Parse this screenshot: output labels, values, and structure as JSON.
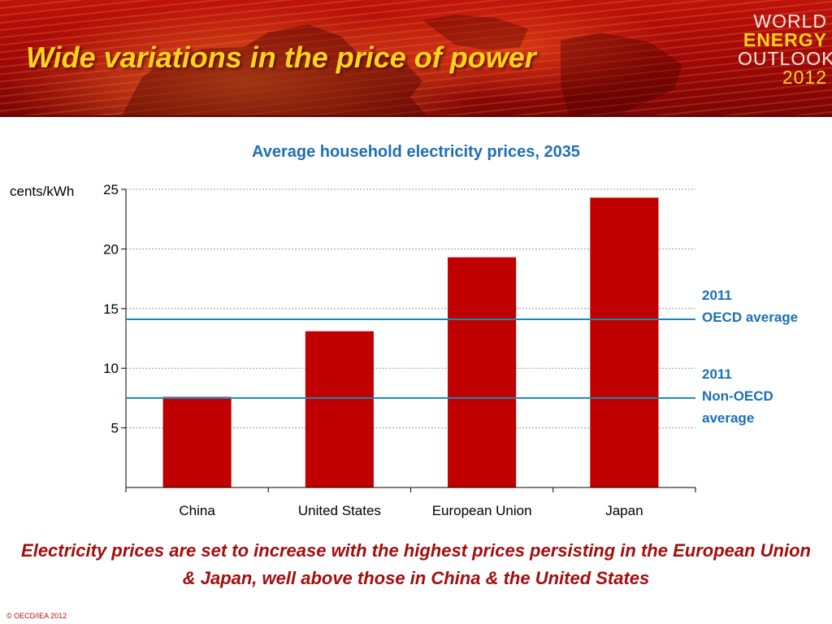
{
  "slide": {
    "title": "Wide variations in the price of power",
    "logo": {
      "line1": "WORLD",
      "line2": "ENERGY",
      "line3": "OUTLOOK",
      "line4": "2012"
    },
    "caption": "Electricity prices are set to increase with the highest prices persisting in the European Union & Japan, well above those in China & the United States",
    "copyright": "© OECD/IEA 2012"
  },
  "chart_data": {
    "type": "bar",
    "title": "Average household electricity prices, 2035",
    "ylabel": "cents/kWh",
    "xlabel": "",
    "categories": [
      "China",
      "United States",
      "European Union",
      "Japan"
    ],
    "values": [
      7.6,
      13.1,
      19.3,
      24.3
    ],
    "ylim": [
      0,
      25
    ],
    "yticks": [
      5,
      10,
      15,
      20,
      25
    ],
    "grid": "horizontal dotted",
    "bar_color": "#c00000",
    "reference_lines": [
      {
        "value": 14.1,
        "label_line1": "2011",
        "label_line2": "OECD average",
        "label_line3": ""
      },
      {
        "value": 7.5,
        "label_line1": "2011",
        "label_line2": "Non-OECD",
        "label_line3": "average"
      }
    ],
    "reference_line_color": "#1a86b8"
  },
  "colors": {
    "title_yellow": "#ffd21f",
    "chart_title_blue": "#1f6fb4",
    "caption_red": "#a30d0d"
  }
}
